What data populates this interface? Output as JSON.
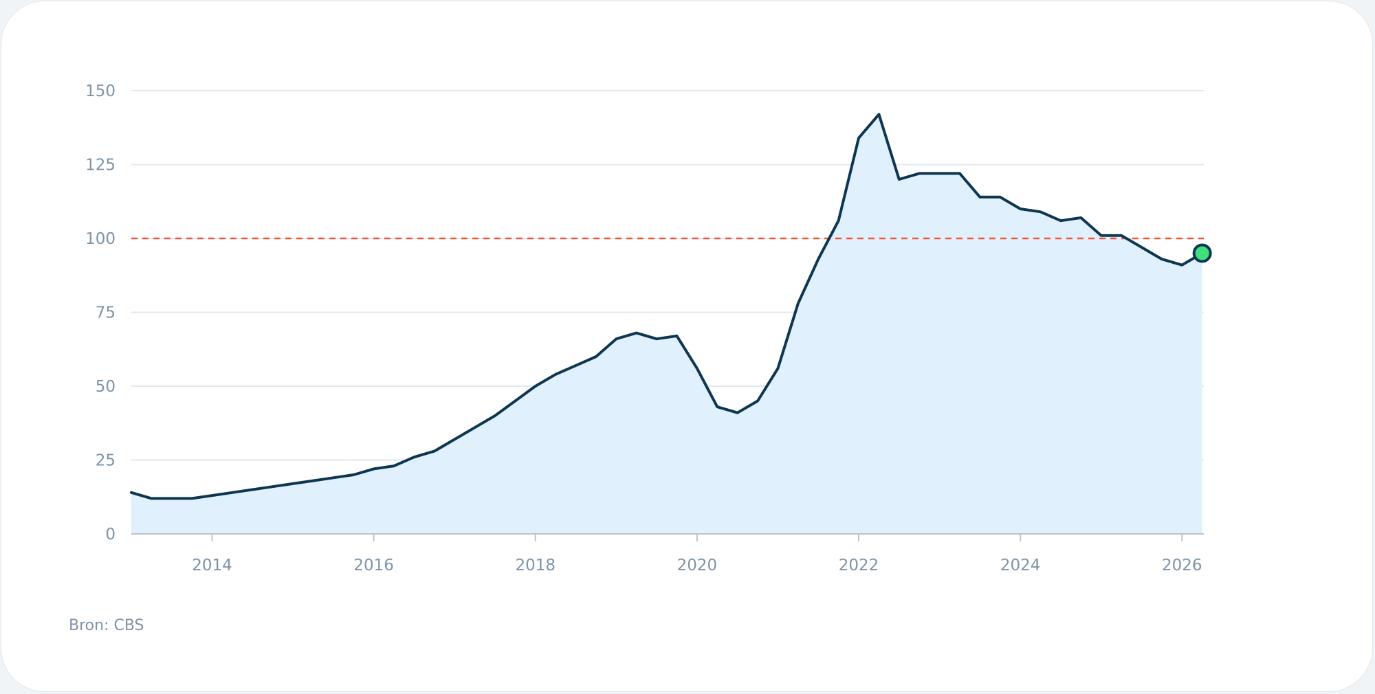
{
  "chart_data": {
    "type": "area",
    "title": "",
    "xlabel": "",
    "ylabel": "",
    "xlim": [
      2013.0,
      2026.27
    ],
    "ylim": [
      0,
      150
    ],
    "y_ticks": [
      0,
      25,
      50,
      75,
      100,
      125,
      150
    ],
    "y_tick_labels": [
      "0",
      "25",
      "50",
      "75",
      "100",
      "125",
      "150"
    ],
    "x_ticks": [
      2014,
      2016,
      2018,
      2020,
      2022,
      2024,
      2026
    ],
    "x_tick_labels": [
      "2014",
      "2016",
      "2018",
      "2020",
      "2022",
      "2024",
      "2026"
    ],
    "grid": true,
    "reference_line": {
      "y": 100,
      "style": "dashed",
      "color": "#f0553a"
    },
    "line_color": "#0e3650",
    "fill_color": "#e0f0fc",
    "marker_color": "#3ee07a",
    "series": [
      {
        "x": [
          2013.0,
          2013.25,
          2013.5,
          2013.75,
          2014.0,
          2014.25,
          2014.5,
          2014.75,
          2015.0,
          2015.25,
          2015.5,
          2015.75,
          2016.0,
          2016.25,
          2016.5,
          2016.75,
          2017.0,
          2017.25,
          2017.5,
          2017.75,
          2018.0,
          2018.25,
          2018.5,
          2018.75,
          2019.0,
          2019.25,
          2019.5,
          2019.75,
          2020.0,
          2020.25,
          2020.5,
          2020.75,
          2021.0,
          2021.25,
          2021.5,
          2021.75,
          2022.0,
          2022.25,
          2022.5,
          2022.75,
          2023.0,
          2023.25,
          2023.5,
          2023.75,
          2024.0,
          2024.25,
          2024.5,
          2024.75,
          2025.0,
          2025.25,
          2025.5,
          2025.75,
          2026.0,
          2026.25
        ],
        "y": [
          14,
          12,
          12,
          12,
          13,
          14,
          15,
          16,
          17,
          18,
          19,
          20,
          22,
          23,
          26,
          28,
          32,
          36,
          40,
          45,
          50,
          54,
          57,
          60,
          66,
          68,
          66,
          67,
          56,
          43,
          41,
          45,
          56,
          78,
          93,
          106,
          134,
          142,
          120,
          122,
          122,
          122,
          114,
          114,
          110,
          109,
          106,
          107,
          101,
          101,
          97,
          93,
          91,
          95
        ]
      }
    ],
    "source": "Bron: CBS"
  }
}
